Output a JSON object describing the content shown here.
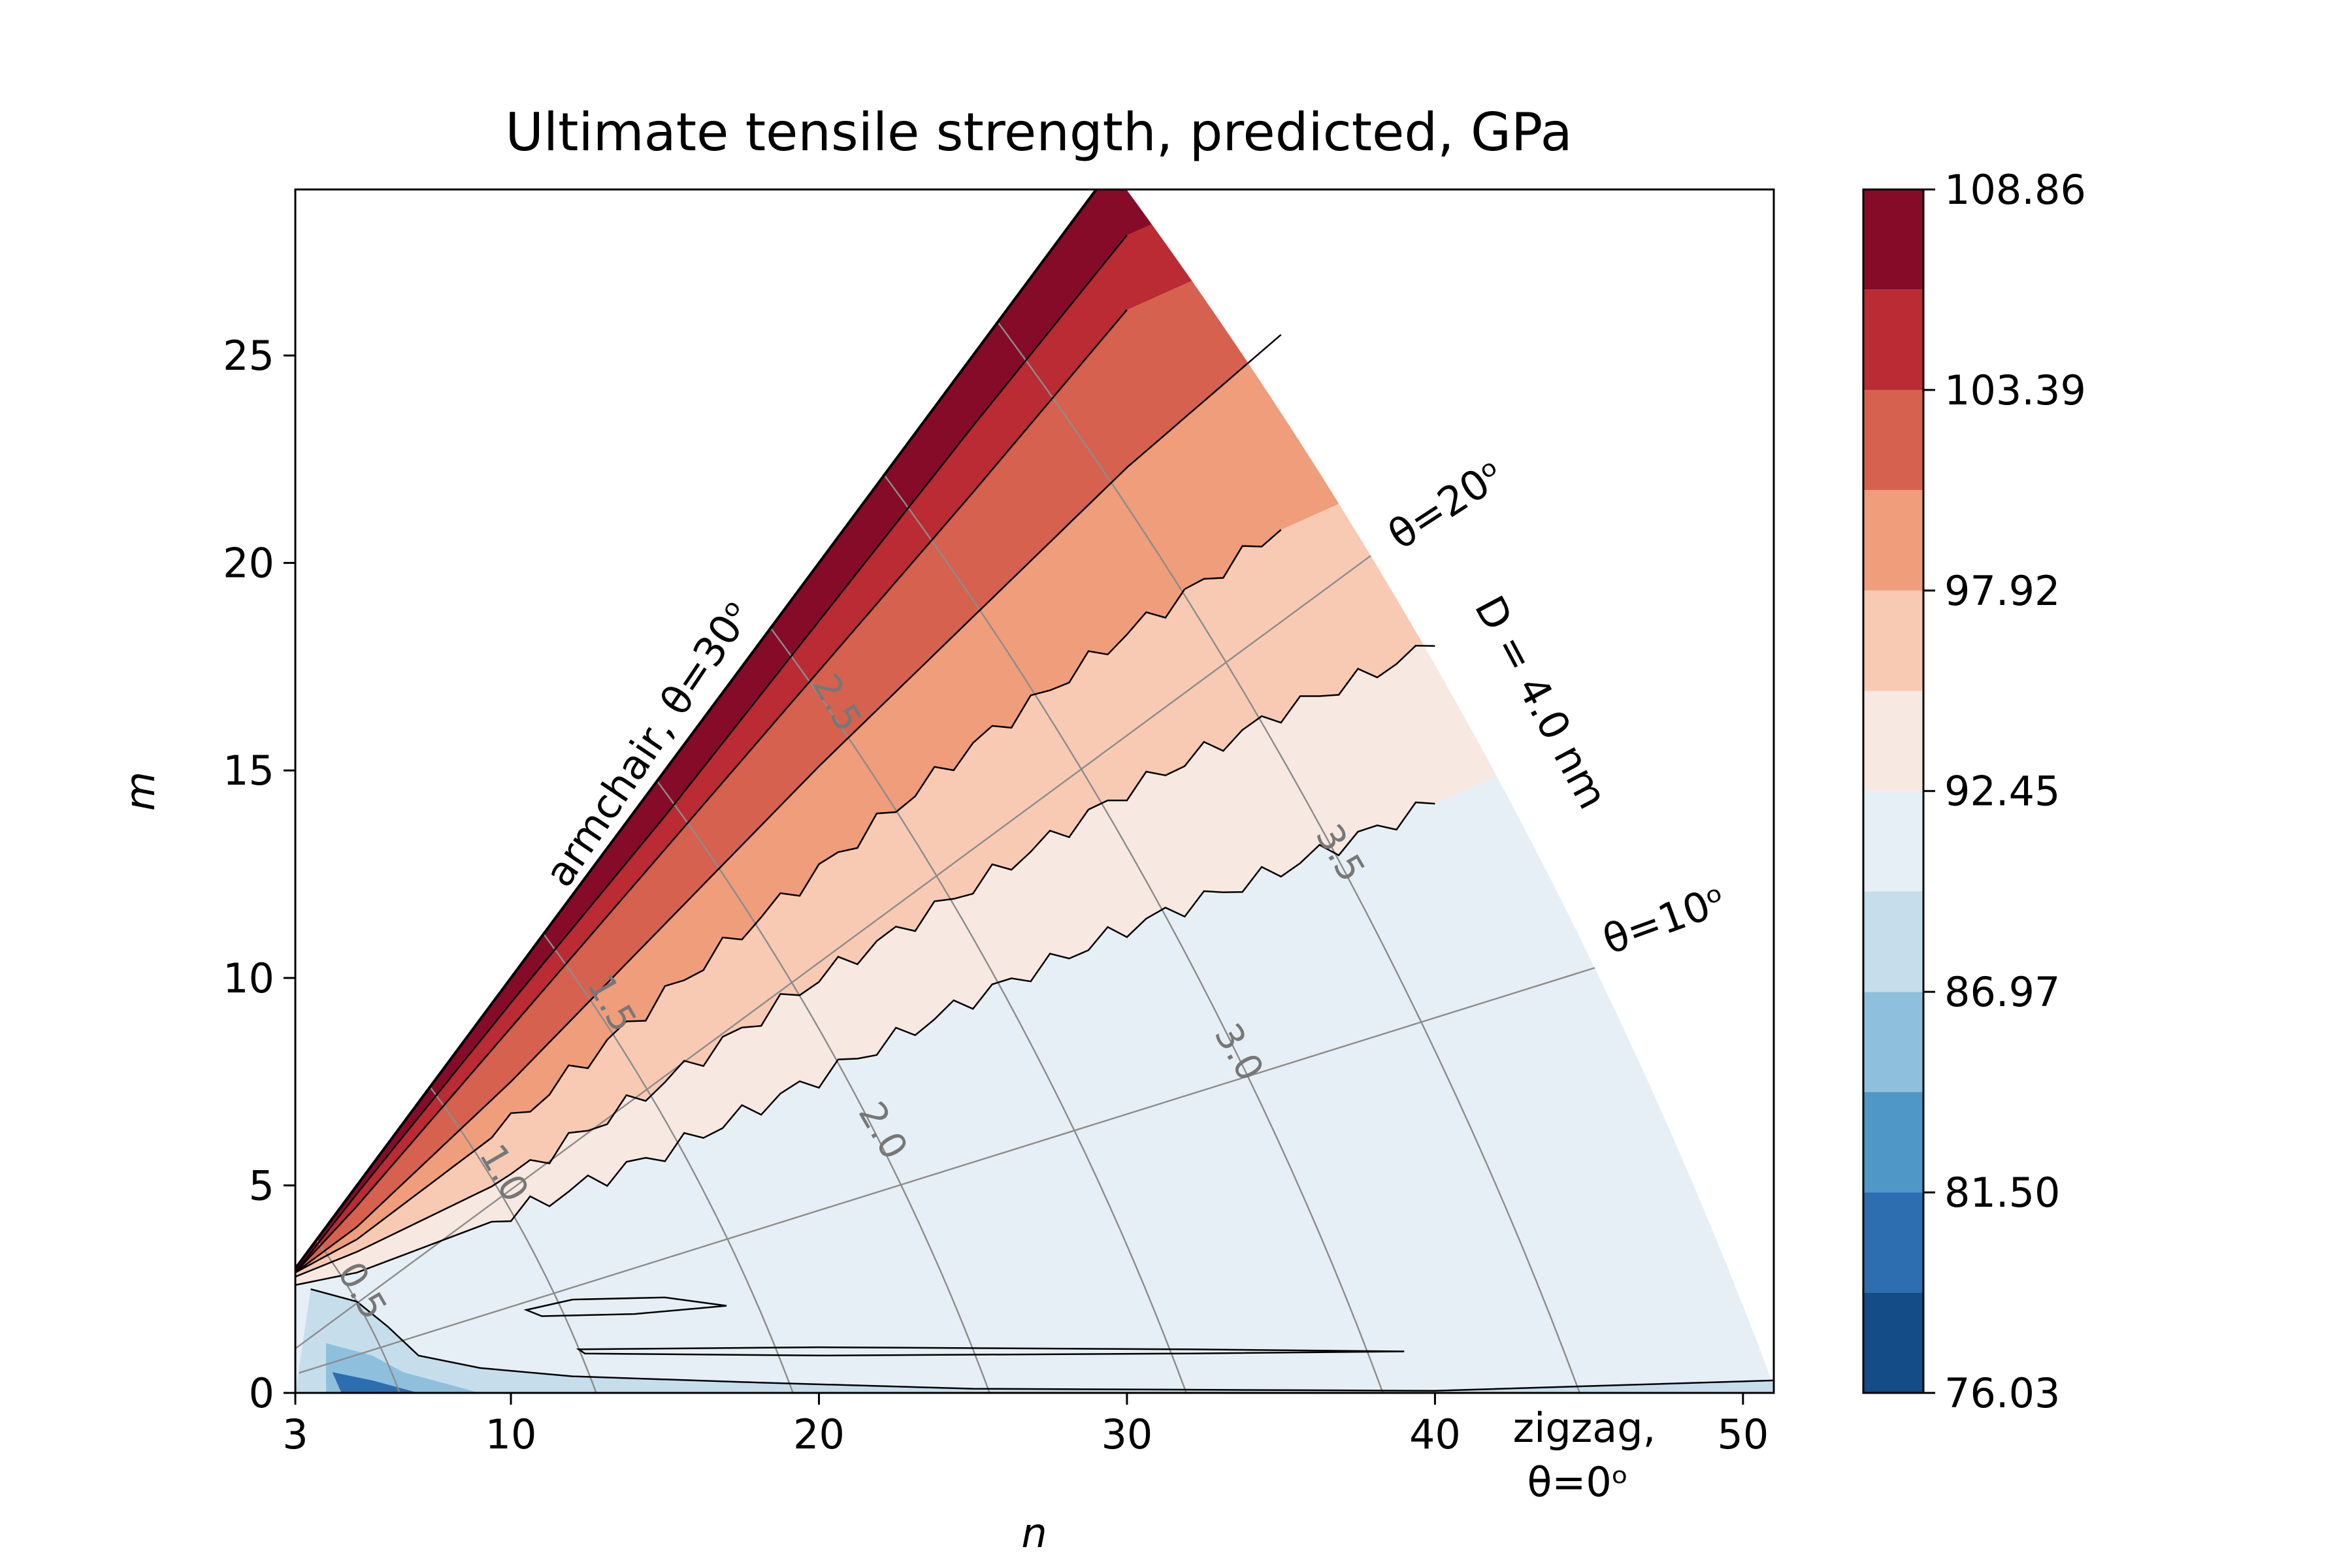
{
  "chart_data": {
    "type": "heatmap",
    "subtype": "filled-contour",
    "title": "Ultimate tensile strength, predicted, GPa",
    "xlabel": "n",
    "ylabel": "m",
    "xlim": [
      3,
      51
    ],
    "ylim": [
      0,
      29
    ],
    "xticks": [
      "3",
      "10",
      "20",
      "30",
      "40",
      "50"
    ],
    "yticks": [
      "0",
      "5",
      "10",
      "15",
      "20",
      "25"
    ],
    "colorbar": {
      "levels": [
        76.03,
        78.77,
        81.5,
        84.24,
        86.97,
        89.71,
        92.45,
        95.18,
        97.92,
        100.66,
        103.39,
        106.13,
        108.86
      ],
      "tick_labels": [
        "108.86",
        "103.39",
        "97.92",
        "92.45",
        "86.97",
        "81.50",
        "76.03"
      ],
      "colors": [
        "#134c86",
        "#2c6eb0",
        "#4f97c6",
        "#8ec0de",
        "#c6deec",
        "#e6eff5",
        "#f7e8e1",
        "#f8cab4",
        "#ef9d7b",
        "#d6614f",
        "#ba2b33",
        "#850b28"
      ]
    },
    "band_boundaries_m_at_n": {
      "n": [
        3,
        5,
        10,
        15,
        20,
        25,
        30,
        35,
        40
      ],
      "106.13": [
        2.9,
        4.8,
        9.4,
        13.9,
        18.6,
        23.3,
        27.9,
        null,
        null
      ],
      "103.39": [
        2.9,
        4.5,
        8.8,
        13.1,
        17.4,
        21.7,
        26.1,
        null,
        null
      ],
      "100.66": [
        2.9,
        4.0,
        7.5,
        11.3,
        15.1,
        18.7,
        22.3,
        25.5,
        null
      ],
      "97.92": [
        2.9,
        3.7,
        6.5,
        9.6,
        12.6,
        15.6,
        18.3,
        20.8,
        null
      ],
      "95.18": [
        2.8,
        3.4,
        5.2,
        7.5,
        10.0,
        12.2,
        14.5,
        16.4,
        18.0
      ],
      "92.45": [
        2.6,
        2.9,
        4.3,
        5.8,
        7.6,
        9.5,
        11.2,
        12.6,
        14.2
      ]
    },
    "annotations": {
      "armchair": "armchair, θ=30ᵒ",
      "theta20": "θ=20ᵒ",
      "theta10": "θ=10ᵒ",
      "diameter_edge": "D = 4.0 nm",
      "zigzag_line1": "zigzag,",
      "zigzag_line2": "θ=0ᵒ"
    },
    "diameter_isolines_nm": [
      "0.5",
      "1.0",
      "1.5",
      "2.0",
      "2.5",
      "3.0",
      "3.5"
    ],
    "chirality_rays_deg": [
      10,
      20
    ]
  }
}
